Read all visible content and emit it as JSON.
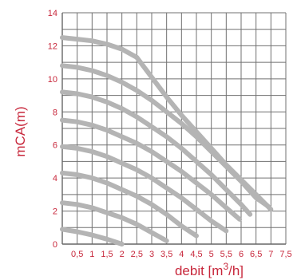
{
  "chart_data": {
    "type": "line",
    "title": "",
    "xlabel": "debit [m",
    "xlabel_sup": "3",
    "xlabel_suffix": "/h]",
    "ylabel": "mCA(m)",
    "xlim": [
      0,
      7.5
    ],
    "ylim": [
      0,
      14
    ],
    "x_ticks": [
      "0,5",
      "1",
      "1,5",
      "2",
      "2,5",
      "3",
      "3,5",
      "4",
      "4,5",
      "5",
      "5,5",
      "6",
      "6,5",
      "7",
      "7,5"
    ],
    "y_ticks": [
      "0",
      "2",
      "4",
      "6",
      "8",
      "10",
      "12",
      "14"
    ],
    "grid": true,
    "colors": {
      "curve": "#b4b4b4",
      "text": "#c8283c",
      "grid": "#707070"
    },
    "series": [
      {
        "x": [
          0,
          0.5,
          1.0,
          1.5,
          2.0
        ],
        "y": [
          0.9,
          0.75,
          0.55,
          0.3,
          0.0
        ]
      },
      {
        "x": [
          0,
          0.5,
          1.0,
          1.5,
          2.0,
          2.5,
          3.0,
          3.5
        ],
        "y": [
          2.5,
          2.4,
          2.2,
          1.9,
          1.6,
          1.2,
          0.7,
          0.2
        ]
      },
      {
        "x": [
          0,
          0.5,
          1.0,
          1.5,
          2.0,
          2.5,
          3.0,
          3.5,
          4.0,
          4.5
        ],
        "y": [
          4.3,
          4.2,
          4.0,
          3.7,
          3.3,
          2.9,
          2.4,
          1.8,
          1.1,
          0.5
        ]
      },
      {
        "x": [
          0,
          0.5,
          1.0,
          1.5,
          2.0,
          2.5,
          3.0,
          3.5,
          4.0,
          4.5,
          5.0,
          5.5
        ],
        "y": [
          5.9,
          5.8,
          5.6,
          5.3,
          4.9,
          4.5,
          4.0,
          3.4,
          2.8,
          2.1,
          1.4,
          0.8
        ]
      },
      {
        "x": [
          0,
          0.5,
          1.0,
          1.5,
          2.0,
          2.5,
          3.0,
          3.5,
          4.0,
          4.5,
          5.0,
          5.5,
          5.95
        ],
        "y": [
          7.5,
          7.4,
          7.2,
          6.9,
          6.5,
          6.1,
          5.6,
          5.0,
          4.4,
          3.7,
          3.0,
          2.2,
          1.5
        ]
      },
      {
        "x": [
          0,
          0.5,
          1.0,
          1.5,
          2.0,
          2.5,
          3.0,
          3.5,
          4.0,
          4.5,
          5.0,
          5.5,
          6.0,
          6.3
        ],
        "y": [
          9.2,
          9.1,
          8.9,
          8.6,
          8.2,
          7.7,
          7.1,
          6.5,
          5.8,
          5.0,
          4.2,
          3.3,
          2.4,
          1.8
        ]
      },
      {
        "x": [
          0,
          0.5,
          1.0,
          1.5,
          2.0,
          2.5,
          3.0,
          3.5,
          4.0,
          4.5,
          5.0,
          5.5,
          6.0,
          6.5,
          6.9
        ],
        "y": [
          10.8,
          10.7,
          10.5,
          10.2,
          9.8,
          9.3,
          8.7,
          8.0,
          7.3,
          6.5,
          5.6,
          4.7,
          3.8,
          2.8,
          2.3
        ]
      },
      {
        "x": [
          0,
          0.5,
          1.0,
          1.5,
          2.0,
          2.5,
          3.0,
          3.5,
          4.0,
          4.5,
          5.0,
          5.5,
          6.0,
          6.5,
          7.0
        ],
        "y": [
          12.5,
          12.4,
          12.3,
          12.1,
          11.8,
          11.3,
          10.1,
          8.9,
          7.8,
          6.8,
          5.8,
          4.8,
          3.9,
          3.0,
          2.1
        ]
      }
    ]
  }
}
